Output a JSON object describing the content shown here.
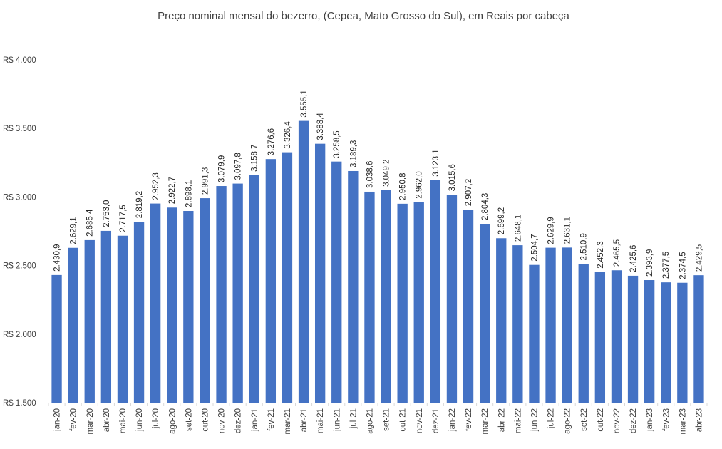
{
  "chart_data": {
    "type": "bar",
    "title": "Preço nominal mensal do bezerro, (Cepea, Mato Grosso do Sul), em Reais por cabeça",
    "categories": [
      "jan-20",
      "fev-20",
      "mar-20",
      "abr-20",
      "mai-20",
      "jun-20",
      "jul-20",
      "ago-20",
      "set-20",
      "out-20",
      "nov-20",
      "dez-20",
      "jan-21",
      "fev-21",
      "mar-21",
      "abr-21",
      "mai-21",
      "jun-21",
      "jul-21",
      "ago-21",
      "set-21",
      "out-21",
      "nov-21",
      "dez-21",
      "jan-22",
      "fev-22",
      "mar-22",
      "abr-22",
      "mai-22",
      "jun-22",
      "jul-22",
      "ago-22",
      "set-22",
      "out-22",
      "nov-22",
      "dez-22",
      "jan-23",
      "fev-23",
      "mar-23",
      "abr-23"
    ],
    "values": [
      2430.9,
      2629.1,
      2685.4,
      2753.0,
      2717.5,
      2819.2,
      2952.3,
      2922.7,
      2898.1,
      2991.3,
      3079.9,
      3097.8,
      3158.7,
      3276.6,
      3326.4,
      3555.1,
      3388.4,
      3258.5,
      3189.3,
      3038.6,
      3049.2,
      2950.8,
      2962.0,
      3123.1,
      3015.6,
      2907.2,
      2804.3,
      2699.2,
      2648.1,
      2504.7,
      2629.9,
      2631.1,
      2510.9,
      2452.3,
      2465.5,
      2425.6,
      2393.9,
      2377.5,
      2374.5,
      2429.5
    ],
    "data_labels": [
      "2.430,9",
      "2.629,1",
      "2.685,4",
      "2.753,0",
      "2.717,5",
      "2.819,2",
      "2.952,3",
      "2.922,7",
      "2.898,1",
      "2.991,3",
      "3.079,9",
      "3.097,8",
      "3.158,7",
      "3.276,6",
      "3.326,4",
      "3.555,1",
      "3.388,4",
      "3.258,5",
      "3.189,3",
      "3.038,6",
      "3.049,2",
      "2.950,8",
      "2.962,0",
      "3.123,1",
      "3.015,6",
      "2.907,2",
      "2.804,3",
      "2.699,2",
      "2.648,1",
      "2.504,7",
      "2.629,9",
      "2.631,1",
      "2.510,9",
      "2.452,3",
      "2.465,5",
      "2.425,6",
      "2.393,9",
      "2.377,5",
      "2.374,5",
      "2.429,5"
    ],
    "yticks": [
      1500,
      2000,
      2500,
      3000,
      3500,
      4000
    ],
    "ytick_labels": [
      "R$ 1.500",
      "R$ 2.000",
      "R$ 2.500",
      "R$ 3.000",
      "R$ 3.500",
      "R$ 4.000"
    ],
    "ylim": [
      1500,
      4000
    ],
    "grid": false,
    "legend": "none",
    "bar_color": "#4472C4",
    "axis_color": "#D9D9D9"
  }
}
